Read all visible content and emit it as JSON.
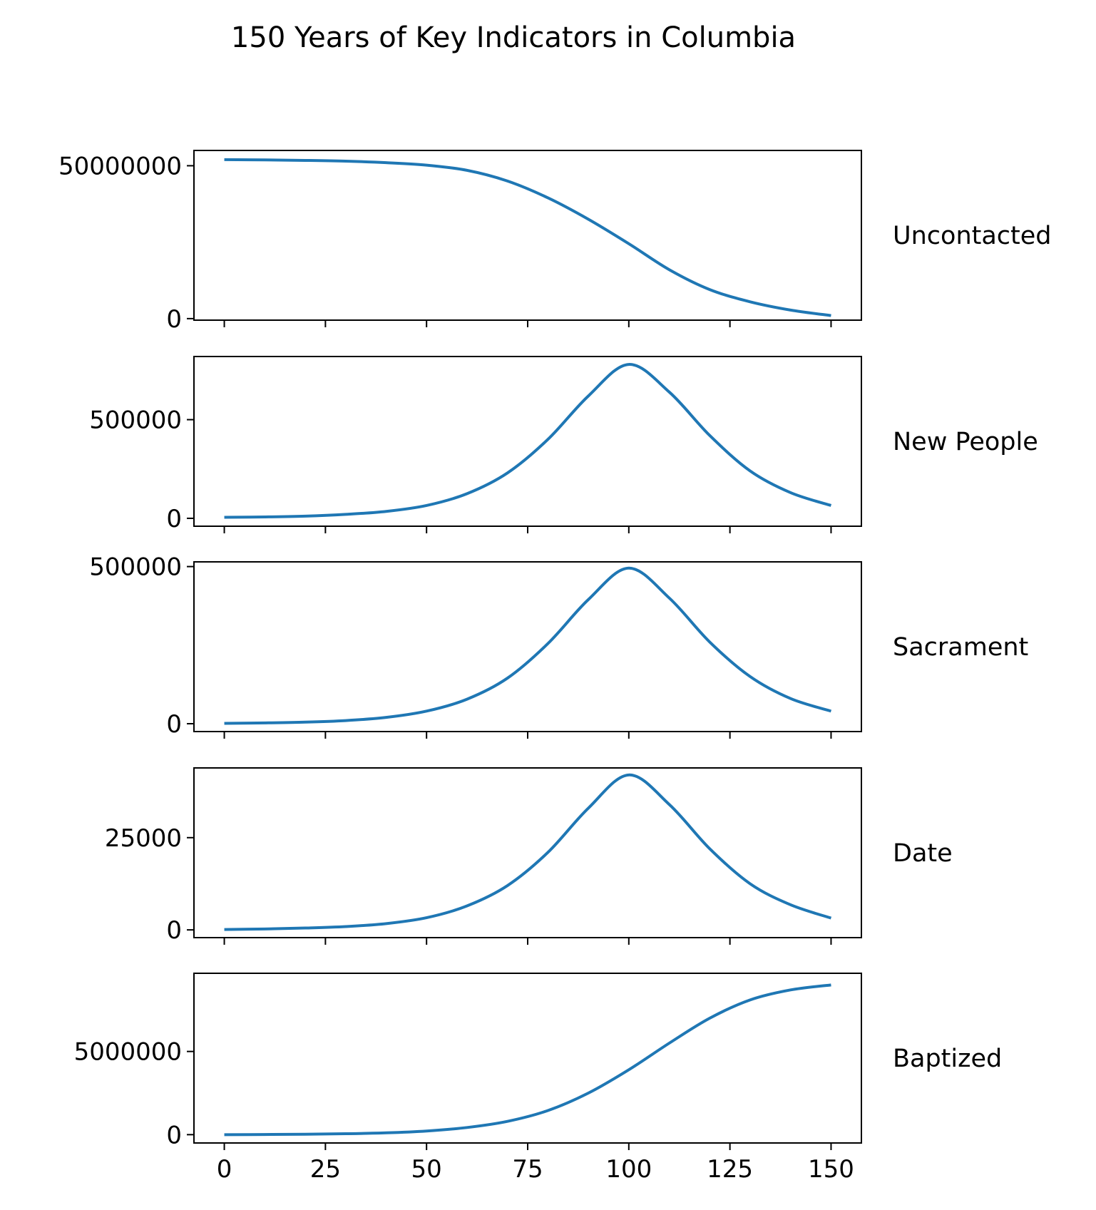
{
  "chart_data": {
    "type": "line",
    "title": "150 Years of Key Indicators in Columbia",
    "xlim": [
      -7.5,
      157.5
    ],
    "x_ticks": [
      0,
      25,
      50,
      75,
      100,
      125,
      150
    ],
    "x_tick_labels": [
      "0",
      "25",
      "50",
      "75",
      "100",
      "125",
      "150"
    ],
    "line_color": "#1f77b4",
    "grid": false,
    "sharex": true,
    "panels": [
      {
        "label": "Uncontacted",
        "ylim": [
          -500000,
          55000000
        ],
        "y_ticks": [
          0,
          50000000
        ],
        "y_tick_labels": [
          "0",
          "50000000"
        ],
        "x": [
          0,
          10,
          20,
          30,
          40,
          50,
          60,
          70,
          80,
          90,
          100,
          110,
          120,
          130,
          140,
          150
        ],
        "y": [
          52000000,
          51900000,
          51750000,
          51500000,
          51000000,
          50200000,
          48500000,
          45000000,
          39500000,
          32500000,
          24500000,
          16000000,
          9500000,
          5500000,
          2800000,
          1000000
        ]
      },
      {
        "label": "New People",
        "ylim": [
          -40000,
          820000
        ],
        "y_ticks": [
          0,
          500000
        ],
        "y_tick_labels": [
          "0",
          "500000"
        ],
        "x": [
          0,
          10,
          20,
          30,
          40,
          50,
          60,
          70,
          80,
          90,
          100,
          110,
          120,
          130,
          140,
          150
        ],
        "y": [
          5000,
          7000,
          11000,
          20000,
          35000,
          65000,
          125000,
          230000,
          400000,
          620000,
          780000,
          640000,
          420000,
          240000,
          130000,
          65000
        ]
      },
      {
        "label": "Sacrament",
        "ylim": [
          -25000,
          515000
        ],
        "y_ticks": [
          0,
          500000
        ],
        "y_tick_labels": [
          "0",
          "500000"
        ],
        "x": [
          0,
          10,
          20,
          30,
          40,
          50,
          60,
          70,
          80,
          90,
          100,
          110,
          120,
          130,
          140,
          150
        ],
        "y": [
          1000,
          2500,
          5000,
          10000,
          20000,
          40000,
          78000,
          145000,
          255000,
          395000,
          495000,
          400000,
          260000,
          150000,
          80000,
          40000
        ]
      },
      {
        "label": "Date",
        "ylim": [
          -2100,
          43900
        ],
        "y_ticks": [
          0,
          25000
        ],
        "y_tick_labels": [
          "0",
          "25000"
        ],
        "x": [
          0,
          10,
          20,
          30,
          40,
          50,
          60,
          70,
          80,
          90,
          100,
          110,
          120,
          130,
          140,
          150
        ],
        "y": [
          100,
          250,
          500,
          900,
          1700,
          3300,
          6500,
          12000,
          21000,
          33000,
          42000,
          34000,
          22000,
          12500,
          6800,
          3200
        ]
      },
      {
        "label": "Baptized",
        "ylim": [
          -500000,
          9700000
        ],
        "y_ticks": [
          0,
          5000000
        ],
        "y_tick_labels": [
          "0",
          "5000000"
        ],
        "x": [
          0,
          10,
          20,
          30,
          40,
          50,
          60,
          70,
          80,
          90,
          100,
          110,
          120,
          130,
          140,
          150
        ],
        "y": [
          0,
          10000,
          25000,
          55000,
          110000,
          220000,
          430000,
          800000,
          1450000,
          2500000,
          3900000,
          5500000,
          7000000,
          8100000,
          8700000,
          9000000
        ]
      }
    ]
  }
}
